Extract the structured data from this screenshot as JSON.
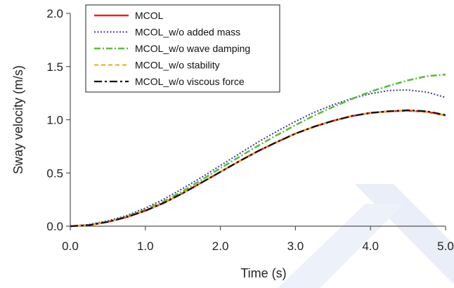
{
  "chart_data": {
    "type": "line",
    "xlabel": "Time (s)",
    "ylabel": "Sway velocity (m/s)",
    "xlim": [
      0,
      5
    ],
    "ylim": [
      0,
      2
    ],
    "xticks": [
      "0.0",
      "1.0",
      "2.0",
      "3.0",
      "4.0",
      "5.0"
    ],
    "yticks": [
      "0.0",
      "0.5",
      "1.0",
      "1.5",
      "2.0"
    ],
    "grid": false,
    "legend_position": "top-left",
    "x": [
      0,
      0.25,
      0.5,
      0.75,
      1.0,
      1.25,
      1.5,
      1.75,
      2.0,
      2.25,
      2.5,
      2.75,
      3.0,
      3.25,
      3.5,
      3.75,
      4.0,
      4.25,
      4.5,
      4.75,
      5.0
    ],
    "series": [
      {
        "name": "MCOL",
        "color": "#e8231b",
        "style": "solid",
        "values": [
          0,
          0.01,
          0.04,
          0.085,
          0.145,
          0.22,
          0.31,
          0.41,
          0.51,
          0.61,
          0.705,
          0.79,
          0.87,
          0.935,
          0.99,
          1.035,
          1.065,
          1.08,
          1.085,
          1.075,
          1.04
        ]
      },
      {
        "name": "MCOL_w/o added mass",
        "color": "#3b3b9b",
        "style": "dotted",
        "values": [
          0,
          0.015,
          0.05,
          0.1,
          0.17,
          0.255,
          0.355,
          0.46,
          0.57,
          0.68,
          0.79,
          0.89,
          0.985,
          1.07,
          1.14,
          1.2,
          1.245,
          1.275,
          1.28,
          1.26,
          1.21
        ]
      },
      {
        "name": "MCOL_w/o wave damping",
        "color": "#5fba46",
        "style": "dashdot",
        "values": [
          0,
          0.01,
          0.04,
          0.09,
          0.155,
          0.235,
          0.33,
          0.435,
          0.545,
          0.65,
          0.755,
          0.855,
          0.95,
          1.04,
          1.12,
          1.195,
          1.265,
          1.32,
          1.37,
          1.41,
          1.425
        ]
      },
      {
        "name": "MCOL_w/o stability",
        "color": "#e3b43a",
        "style": "dashed",
        "values": [
          0,
          0.01,
          0.04,
          0.085,
          0.145,
          0.22,
          0.31,
          0.41,
          0.51,
          0.61,
          0.705,
          0.79,
          0.87,
          0.935,
          0.99,
          1.035,
          1.065,
          1.08,
          1.085,
          1.075,
          1.04
        ]
      },
      {
        "name": "MCOL_w/o viscous force",
        "color": "#111111",
        "style": "longdashdot",
        "values": [
          0,
          0.01,
          0.04,
          0.085,
          0.145,
          0.22,
          0.31,
          0.41,
          0.51,
          0.61,
          0.705,
          0.79,
          0.87,
          0.935,
          0.99,
          1.035,
          1.065,
          1.08,
          1.09,
          1.08,
          1.045
        ]
      }
    ]
  }
}
